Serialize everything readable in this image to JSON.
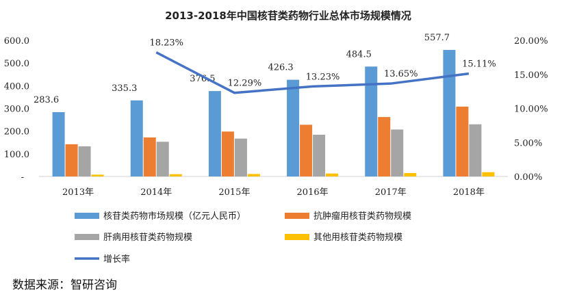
{
  "chart_data": {
    "type": "bar",
    "title": "2013-2018年中国核苷类药物行业总体市场规模情况",
    "categories": [
      "2013年",
      "2014年",
      "2015年",
      "2016年",
      "2017年",
      "2018年"
    ],
    "series": [
      {
        "name": "核苷类药物市场规模（亿元人民币）",
        "type": "bar",
        "axis": "left",
        "color": "#5b9bd5",
        "values": [
          283.6,
          335.3,
          376.5,
          426.3,
          484.5,
          557.7
        ],
        "labels": [
          "283.6",
          "335.3",
          "376.5",
          "426.3",
          "484.5",
          "557.7"
        ]
      },
      {
        "name": "抗肿瘤用核苷类药物规模",
        "type": "bar",
        "axis": "left",
        "color": "#ed7d31",
        "values": [
          142,
          172,
          198,
          228,
          262,
          308
        ]
      },
      {
        "name": "肝病用核苷类药物规模",
        "type": "bar",
        "axis": "left",
        "color": "#a5a5a5",
        "values": [
          133,
          153,
          167,
          184,
          207,
          230
        ]
      },
      {
        "name": "其他用核苷类药物规模",
        "type": "bar",
        "axis": "left",
        "color": "#ffc000",
        "values": [
          8,
          10,
          11,
          13,
          15,
          19
        ]
      },
      {
        "name": "增长率",
        "type": "line",
        "axis": "right",
        "color": "#4472c4",
        "x": [
          "2014年",
          "2015年",
          "2016年",
          "2017年",
          "2018年"
        ],
        "values": [
          18.23,
          12.29,
          13.23,
          13.65,
          15.11
        ],
        "labels": [
          "18.23%",
          "12.29%",
          "13.23%",
          "13.65%",
          "15.11%"
        ]
      }
    ],
    "left_axis": {
      "min": 0,
      "max": 600,
      "ticks": [
        "-",
        "100.0",
        "200.0",
        "300.0",
        "400.0",
        "500.0",
        "600.0"
      ]
    },
    "right_axis": {
      "min": 0,
      "max": 20,
      "ticks": [
        "0.00%",
        "5.00%",
        "10.00%",
        "15.00%",
        "20.00%"
      ]
    },
    "legend_position": "bottom",
    "grid": false
  },
  "source_note": "数据来源：智研咨询"
}
